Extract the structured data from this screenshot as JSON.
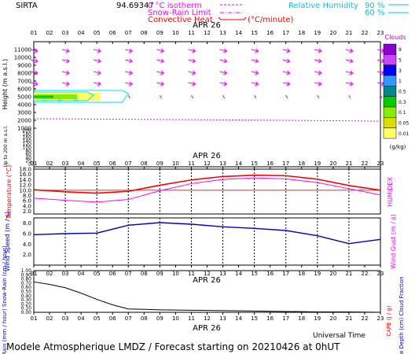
{
  "header": {
    "station": "SIRTA",
    "station_value": "94.69347",
    "legend_rh_label": "Relative Humidity",
    "legend_rh_90": "90 %",
    "legend_rh_60": "60 %",
    "legend_isotherm": "0 °C isotherm",
    "legend_snowrain": "Snow-Rain Limit",
    "legend_convective": "Convective Heat",
    "legend_unit": "(°C/minute)"
  },
  "footer": {
    "universal_time": "Universal Time",
    "caption": "Modele Atmospherique LMDZ / Forecast starting on 20210426 at 0hUT"
  },
  "colors": {
    "magenta": "#ff00ff",
    "red": "#ff0000",
    "cyan": "#00e5ee",
    "blue": "#0000cc",
    "green": "#009900",
    "clouds_title": "#bb00bb"
  },
  "chart_data": [
    {
      "id": "clouds_height",
      "type": "heatmap",
      "date_label": "APR 26",
      "hours": [
        "01",
        "02",
        "03",
        "04",
        "05",
        "06",
        "07",
        "08",
        "09",
        "10",
        "11",
        "12",
        "13",
        "14",
        "15",
        "16",
        "17",
        "18",
        "19",
        "20",
        "21",
        "22",
        "23"
      ],
      "ylabel": "Height  (m a.s.l.)",
      "ylabel_lower": "Up to 200 m a.s.l.",
      "y_ticks_upper": [
        "11000",
        "10000",
        "9000",
        "8000",
        "7000",
        "6000",
        "5000",
        "4000",
        "3000",
        "2000",
        "1000"
      ],
      "y_ticks_lower": [
        "200",
        "180",
        "160",
        "140",
        "120",
        "100",
        "80",
        "60",
        "40",
        "20",
        "0"
      ],
      "ylim": [
        0,
        11500
      ],
      "cloud_layer": {
        "hours": [
          "01",
          "06"
        ],
        "height_range": [
          4500,
          5500
        ],
        "max_fraction": 0.9
      },
      "rh_contour_labels": [
        "70",
        "90",
        "60"
      ],
      "isotherm_height": 2200,
      "colorbar": {
        "title": "Clouds",
        "unit": "(g/kg)",
        "levels": [
          "9",
          "5",
          "3",
          "1",
          "0.5",
          "0.3",
          "0.1",
          "0.05",
          "0.01"
        ],
        "colors": [
          "#8800cc",
          "#cc44ff",
          "#0000ee",
          "#3399ff",
          "#008888",
          "#00cc00",
          "#88ee00",
          "#dddd00",
          "#ffff66"
        ]
      }
    },
    {
      "id": "temperature",
      "type": "line",
      "date_label": "APR 26",
      "ylabel": "Temperature (°C)",
      "ylabel_right": "HUMIDEX",
      "y_ticks": [
        "18.0",
        "16.0",
        "14.0",
        "12.0",
        "10.0",
        "8.0",
        "6.0",
        "4.0",
        "2.0"
      ],
      "ylim": [
        1,
        18
      ],
      "reference_line": 10,
      "series": [
        {
          "name": "Temperature",
          "x": [
            1,
            3,
            5,
            7,
            9,
            11,
            13,
            15,
            17,
            19,
            21,
            23
          ],
          "values": [
            10.2,
            9.4,
            8.9,
            9.6,
            11.9,
            13.9,
            15.2,
            15.7,
            15.5,
            14.2,
            11.8,
            10.0
          ]
        },
        {
          "name": "Humidex",
          "x": [
            1,
            3,
            5,
            7,
            9,
            11,
            13,
            15,
            17,
            19,
            21,
            23
          ],
          "values": [
            7.0,
            6.2,
            5.5,
            6.5,
            9.8,
            12.5,
            14.1,
            14.7,
            14.3,
            12.9,
            10.6,
            8.2
          ]
        }
      ]
    },
    {
      "id": "wind",
      "type": "line",
      "ylabel": "Wind Speed (m / s)",
      "ylabel_right": "Wind Gust (m / s)",
      "y_ticks": [
        "8.0",
        "6.0",
        "4.0",
        "2.0"
      ],
      "ylim": [
        0,
        9
      ],
      "series": [
        {
          "name": "Wind Speed",
          "x": [
            1,
            3,
            5,
            7,
            9,
            11,
            13,
            15,
            17,
            19,
            21,
            23
          ],
          "values": [
            5.8,
            6.0,
            6.1,
            7.6,
            8.1,
            7.8,
            7.3,
            7.0,
            6.6,
            5.6,
            4.1,
            4.9
          ]
        }
      ]
    },
    {
      "id": "precipitation",
      "type": "line",
      "date_label": "APR 26",
      "ylabel": "Rain (mm / hour) Snow-Rain (cm / hour)",
      "ylabel_right_red": "CAPE (J / g)",
      "ylabel_right_blue": "Snow Depth (cm) Cloud Fraction",
      "y_ticks": [
        "1.00",
        "0.90",
        "0.80",
        "0.70",
        "0.60",
        "0.50",
        "0.40",
        "0.30",
        "0.20",
        "0.10",
        "0.00"
      ],
      "ylim": [
        0,
        1
      ],
      "series": [
        {
          "name": "Cloud Fraction",
          "x": [
            1,
            2,
            3,
            4,
            5,
            6,
            7,
            8,
            9,
            11,
            13,
            15,
            17,
            19,
            21,
            23
          ],
          "values": [
            0.73,
            0.67,
            0.59,
            0.46,
            0.31,
            0.18,
            0.08,
            0.07,
            0.06,
            0.05,
            0.04,
            0.03,
            0.02,
            0.01,
            0.01,
            0.0
          ]
        }
      ]
    }
  ]
}
